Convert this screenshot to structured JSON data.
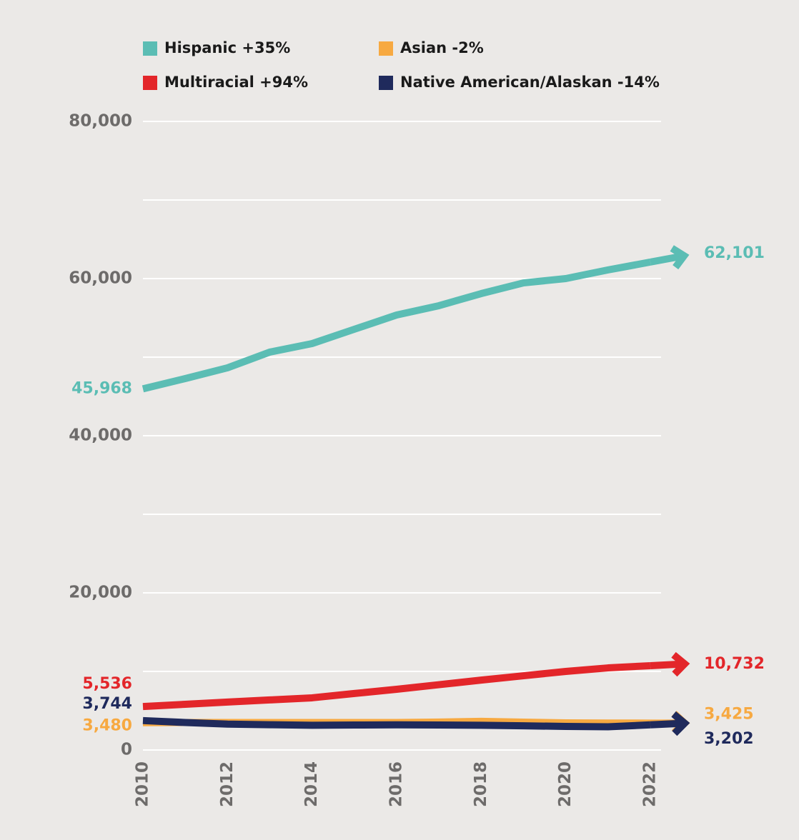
{
  "chart_data": {
    "type": "line",
    "x": [
      2010,
      2011,
      2012,
      2013,
      2014,
      2015,
      2016,
      2017,
      2018,
      2019,
      2020,
      2021,
      2022
    ],
    "xlim": [
      2010,
      2022
    ],
    "xticks": [
      2010,
      2012,
      2014,
      2016,
      2018,
      2020,
      2022
    ],
    "ylim": [
      0,
      80000
    ],
    "yticks": [
      {
        "value": 0,
        "label": "0"
      },
      {
        "value": 20000,
        "label": "20,000"
      },
      {
        "value": 40000,
        "label": "40,000"
      },
      {
        "value": 60000,
        "label": "60,000"
      },
      {
        "value": 80000,
        "label": "80,000"
      }
    ],
    "grid_yticks": [
      0,
      10000,
      20000,
      30000,
      40000,
      50000,
      60000,
      70000,
      80000
    ],
    "grid": true,
    "series": [
      {
        "name": "Hispanic +35%",
        "color": "#5bbdb4",
        "values": [
          45968,
          47270,
          48640,
          50640,
          51730,
          53550,
          55360,
          56550,
          58090,
          59450,
          60000,
          61100,
          62101
        ],
        "value_labels": [
          "45,968",
          null,
          null,
          null,
          null,
          null,
          null,
          null,
          null,
          null,
          null,
          null,
          "62,101"
        ]
      },
      {
        "name": "Asian -2%",
        "color": "#f7a941",
        "values": [
          3480,
          3500,
          3500,
          3500,
          3500,
          3500,
          3500,
          3560,
          3650,
          3550,
          3450,
          3430,
          3425
        ],
        "value_labels": [
          "3,480",
          null,
          null,
          null,
          null,
          null,
          null,
          null,
          null,
          null,
          null,
          null,
          "3,425"
        ]
      },
      {
        "name": "Multiracial +94%",
        "color": "#e3262a",
        "values": [
          5536,
          5820,
          6100,
          6370,
          6640,
          7190,
          7730,
          8310,
          8900,
          9450,
          10000,
          10450,
          10732
        ],
        "value_labels": [
          "5,536",
          null,
          null,
          null,
          null,
          null,
          null,
          null,
          null,
          null,
          null,
          null,
          "10,732"
        ]
      },
      {
        "name": "Native American/Alaskan -14%",
        "color": "#1f2a5c",
        "values": [
          3744,
          3500,
          3300,
          3220,
          3150,
          3180,
          3200,
          3180,
          3150,
          3080,
          3000,
          2950,
          3202
        ],
        "value_labels": [
          "3,744",
          null,
          null,
          null,
          null,
          null,
          null,
          null,
          null,
          null,
          null,
          null,
          "3,202"
        ]
      }
    ]
  }
}
